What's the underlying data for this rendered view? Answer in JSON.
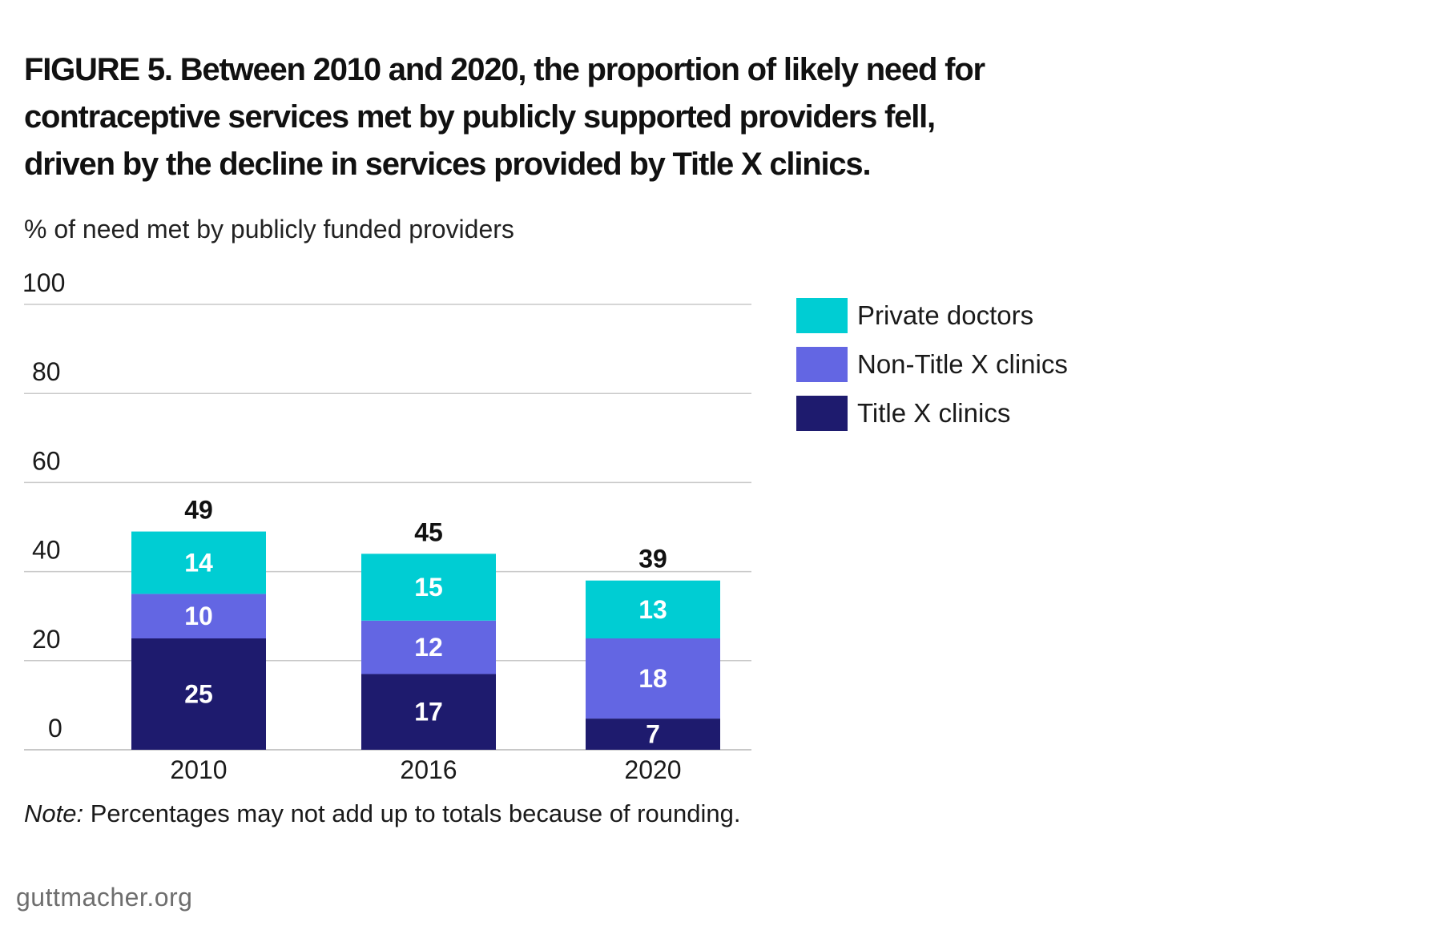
{
  "chart_data": {
    "type": "bar",
    "stacked": true,
    "title": "FIGURE 5. Between 2010 and 2020, the proportion of likely need for contraceptive services met by publicly supported providers fell, driven by the decline in services provided by Title X clinics.",
    "ylabel": "% of need met by publicly funded providers",
    "xlabel": "",
    "categories": [
      "2010",
      "2016",
      "2020"
    ],
    "ylim": [
      0,
      100
    ],
    "yticks": [
      0,
      20,
      40,
      60,
      80,
      100
    ],
    "grid": true,
    "legend_position": "right",
    "series": [
      {
        "name": "Title X clinics",
        "values": [
          25,
          17,
          7
        ],
        "color": "#1e1b6e"
      },
      {
        "name": "Non-Title X clinics",
        "values": [
          10,
          12,
          18
        ],
        "color": "#6366e3"
      },
      {
        "name": "Private doctors",
        "values": [
          14,
          15,
          13
        ],
        "color": "#00cdd3"
      }
    ],
    "totals": [
      49,
      45,
      39
    ],
    "legend_order": [
      2,
      1,
      0
    ]
  },
  "note": {
    "label": "Note:",
    "text": " Percentages may not add up to totals because of rounding."
  },
  "source": "guttmacher.org"
}
